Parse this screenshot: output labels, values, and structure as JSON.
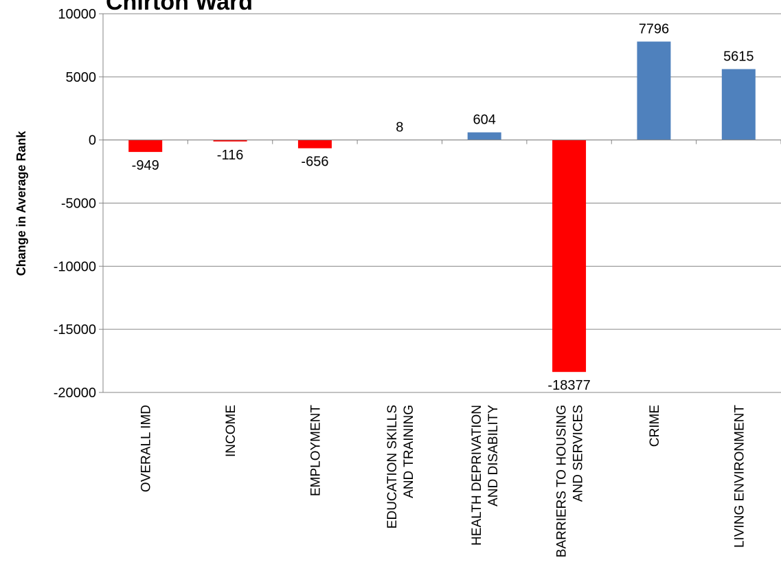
{
  "chart_data": {
    "type": "bar",
    "title": "Chirton Ward",
    "xlabel": "",
    "ylabel": "Change in Average Rank",
    "ylim": [
      -20000,
      10000
    ],
    "yticks": [
      10000,
      5000,
      0,
      -5000,
      -10000,
      -15000,
      -20000
    ],
    "grid": true,
    "legend": "none",
    "categories": [
      [
        "OVERALL IMD"
      ],
      [
        "INCOME"
      ],
      [
        "EMPLOYMENT"
      ],
      [
        "EDUCATION SKILLS",
        "AND TRAINING"
      ],
      [
        "HEALTH DEPRIVATION",
        "AND DISABILITY"
      ],
      [
        "BARRIERS TO HOUSING",
        "AND SERVICES"
      ],
      [
        "CRIME"
      ],
      [
        "LIVING ENVIRONMENT"
      ]
    ],
    "values": [
      -949,
      -116,
      -656,
      8,
      604,
      -18377,
      7796,
      5615
    ],
    "colors": {
      "positive": "#4f81bd",
      "negative": "#ff0000",
      "grid": "#868686",
      "axis": "#868686"
    }
  }
}
